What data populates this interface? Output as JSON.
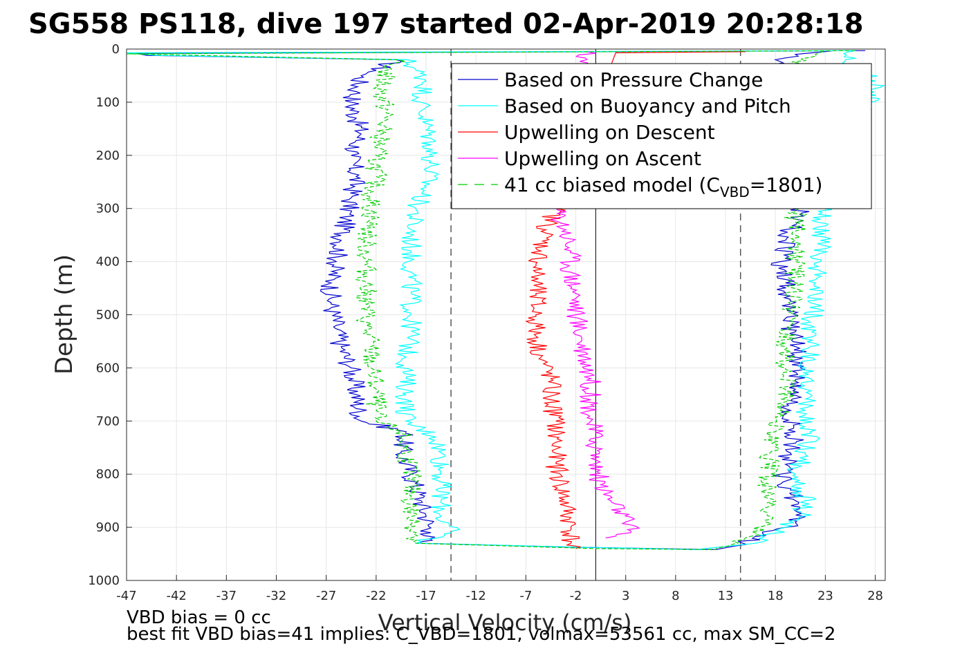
{
  "title": "SG558 PS118, dive 197 started 02-Apr-2019 20:28:18",
  "footer": {
    "line1": "VBD bias = 0 cc",
    "line2": "best fit VBD bias=41 implies: C_VBD=1801, volmax=53561 cc, max SM_CC=2"
  },
  "chart_data": {
    "type": "line",
    "title": "SG558 PS118, dive 197 started 02-Apr-2019 20:28:18",
    "xlabel": "Vertical Velocity (cm/s)",
    "ylabel": "Depth (m)",
    "xlim": [
      -47,
      29
    ],
    "ylim": [
      0,
      1000
    ],
    "y_reversed": true,
    "grid": true,
    "legend_position": "top-right",
    "xticks": [
      -47,
      -42,
      -37,
      -32,
      -27,
      -22,
      -17,
      -12,
      -7,
      -2,
      3,
      8,
      13,
      18,
      23,
      28
    ],
    "yticks": [
      0,
      100,
      200,
      300,
      400,
      500,
      600,
      700,
      800,
      900,
      1000
    ],
    "reference_lines": {
      "solid_x": 0,
      "dashed_x": [
        -14.5,
        14.5
      ]
    },
    "series": [
      {
        "name": "Based on Pressure Change",
        "color": "#0000cc",
        "style": "solid",
        "points": [
          [
            27,
            3
          ],
          [
            -46,
            8
          ],
          [
            -45,
            12
          ],
          [
            -20,
            20
          ],
          [
            -22,
            40
          ],
          [
            -23.5,
            50
          ],
          [
            -24,
            80
          ],
          [
            -24.5,
            100
          ],
          [
            -24,
            130
          ],
          [
            -23.5,
            160
          ],
          [
            -24.5,
            200
          ],
          [
            -24,
            240
          ],
          [
            -24.5,
            280
          ],
          [
            -25,
            320
          ],
          [
            -25.5,
            360
          ],
          [
            -26,
            400
          ],
          [
            -26.5,
            440
          ],
          [
            -26.5,
            480
          ],
          [
            -26,
            520
          ],
          [
            -25.5,
            560
          ],
          [
            -24.5,
            600
          ],
          [
            -24,
            650
          ],
          [
            -23.5,
            700
          ],
          [
            -19,
            720
          ],
          [
            -19.5,
            760
          ],
          [
            -18.5,
            800
          ],
          [
            -17.5,
            850
          ],
          [
            -17,
            880
          ],
          [
            -16.5,
            910
          ],
          [
            -17.5,
            930
          ],
          [
            -3,
            937
          ],
          [
            12,
            942
          ],
          [
            14,
            935
          ],
          [
            17,
            915
          ],
          [
            19,
            900
          ],
          [
            21,
            880
          ],
          [
            20,
            850
          ],
          [
            19.5,
            830
          ],
          [
            18.5,
            800
          ],
          [
            19.5,
            760
          ],
          [
            20,
            720
          ],
          [
            19.5,
            680
          ],
          [
            20,
            640
          ],
          [
            20.5,
            600
          ],
          [
            20,
            560
          ],
          [
            19.5,
            520
          ],
          [
            19.5,
            480
          ],
          [
            19,
            440
          ],
          [
            18.5,
            400
          ],
          [
            19,
            360
          ],
          [
            20,
            320
          ],
          [
            20.5,
            300
          ],
          [
            18,
            20
          ],
          [
            20,
            10
          ],
          [
            24,
            3
          ]
        ]
      },
      {
        "name": "Based on Buoyancy and Pitch",
        "color": "#00ffff",
        "style": "solid",
        "points": [
          [
            26,
            3
          ],
          [
            -47,
            7
          ],
          [
            -44,
            12
          ],
          [
            -19,
            20
          ],
          [
            -18,
            40
          ],
          [
            -17,
            60
          ],
          [
            -17.5,
            100
          ],
          [
            -17,
            140
          ],
          [
            -16.5,
            180
          ],
          [
            -16.5,
            220
          ],
          [
            -17,
            260
          ],
          [
            -18,
            300
          ],
          [
            -18.5,
            340
          ],
          [
            -18.5,
            380
          ],
          [
            -18.5,
            420
          ],
          [
            -18.5,
            460
          ],
          [
            -18.5,
            500
          ],
          [
            -18.5,
            540
          ],
          [
            -19,
            580
          ],
          [
            -19,
            620
          ],
          [
            -19,
            660
          ],
          [
            -19,
            700
          ],
          [
            -16,
            730
          ],
          [
            -15.5,
            760
          ],
          [
            -15.5,
            800
          ],
          [
            -15.5,
            850
          ],
          [
            -15.5,
            880
          ],
          [
            -14.5,
            910
          ],
          [
            -18,
            930
          ],
          [
            0,
            938
          ],
          [
            10,
            942
          ],
          [
            16,
            930
          ],
          [
            19,
            900
          ],
          [
            20.5,
            880
          ],
          [
            21,
            850
          ],
          [
            20,
            800
          ],
          [
            21,
            760
          ],
          [
            21.5,
            720
          ],
          [
            21,
            680
          ],
          [
            21,
            640
          ],
          [
            21,
            600
          ],
          [
            21.5,
            560
          ],
          [
            21.5,
            520
          ],
          [
            22,
            480
          ],
          [
            22,
            440
          ],
          [
            22.5,
            400
          ],
          [
            22.5,
            360
          ],
          [
            22.5,
            320
          ],
          [
            28,
            60
          ],
          [
            25,
            20
          ],
          [
            26,
            3
          ]
        ]
      },
      {
        "name": "Upwelling on Descent",
        "color": "#ff0000",
        "style": "solid",
        "points": [
          [
            15,
            5
          ],
          [
            2,
            7
          ],
          [
            -4,
            300
          ],
          [
            -5,
            340
          ],
          [
            -5.5,
            380
          ],
          [
            -6,
            420
          ],
          [
            -6,
            460
          ],
          [
            -6,
            500
          ],
          [
            -6,
            540
          ],
          [
            -5.5,
            580
          ],
          [
            -4.5,
            620
          ],
          [
            -4.5,
            660
          ],
          [
            -4,
            700
          ],
          [
            -4,
            740
          ],
          [
            -4,
            780
          ],
          [
            -3.5,
            820
          ],
          [
            -3,
            860
          ],
          [
            -2.5,
            900
          ],
          [
            -2.5,
            930
          ],
          [
            -2,
            940
          ]
        ]
      },
      {
        "name": "Upwelling on Ascent",
        "color": "#ff00ff",
        "style": "solid",
        "points": [
          [
            -1,
            5
          ],
          [
            -4,
            300
          ],
          [
            -3,
            340
          ],
          [
            -2.5,
            380
          ],
          [
            -2.5,
            420
          ],
          [
            -2,
            460
          ],
          [
            -2,
            500
          ],
          [
            -1.5,
            540
          ],
          [
            -1,
            580
          ],
          [
            -0.5,
            620
          ],
          [
            -0.5,
            660
          ],
          [
            -0.5,
            700
          ],
          [
            0,
            740
          ],
          [
            0,
            780
          ],
          [
            0.5,
            820
          ],
          [
            1.5,
            850
          ],
          [
            2.5,
            870
          ],
          [
            3,
            890
          ],
          [
            3.5,
            910
          ],
          [
            1,
            920
          ]
        ]
      },
      {
        "name": "41 cc biased model (C_VBD=1801)",
        "color": "#00cc00",
        "style": "dashed",
        "points": [
          [
            26,
            3
          ],
          [
            -47,
            9
          ],
          [
            -20,
            20
          ],
          [
            -21,
            40
          ],
          [
            -21.5,
            80
          ],
          [
            -21,
            120
          ],
          [
            -21.5,
            160
          ],
          [
            -22,
            200
          ],
          [
            -22,
            240
          ],
          [
            -22.5,
            280
          ],
          [
            -22.5,
            320
          ],
          [
            -23,
            360
          ],
          [
            -23,
            400
          ],
          [
            -23,
            440
          ],
          [
            -23,
            480
          ],
          [
            -23,
            520
          ],
          [
            -22.5,
            560
          ],
          [
            -22.5,
            600
          ],
          [
            -22,
            640
          ],
          [
            -22,
            680
          ],
          [
            -22,
            700
          ],
          [
            -19.5,
            720
          ],
          [
            -19,
            760
          ],
          [
            -18.5,
            800
          ],
          [
            -18.5,
            840
          ],
          [
            -18.5,
            880
          ],
          [
            -18,
            910
          ],
          [
            -18,
            930
          ],
          [
            0,
            940
          ],
          [
            12,
            942
          ],
          [
            15,
            920
          ],
          [
            17,
            890
          ],
          [
            17.5,
            860
          ],
          [
            17,
            830
          ],
          [
            17.5,
            800
          ],
          [
            17.5,
            760
          ],
          [
            18,
            720
          ],
          [
            18.5,
            680
          ],
          [
            19,
            640
          ],
          [
            19,
            600
          ],
          [
            19,
            560
          ],
          [
            19.5,
            520
          ],
          [
            19.5,
            480
          ],
          [
            20,
            440
          ],
          [
            20,
            400
          ],
          [
            20,
            360
          ],
          [
            20,
            320
          ],
          [
            20,
            300
          ],
          [
            20,
            30
          ],
          [
            22,
            10
          ],
          [
            23,
            3
          ]
        ]
      }
    ]
  },
  "legend": {
    "items": [
      {
        "label": "Based on Pressure Change",
        "color": "#0000cc",
        "dashed": false
      },
      {
        "label": "Based on Buoyancy and Pitch",
        "color": "#00ffff",
        "dashed": false
      },
      {
        "label": "Upwelling on Descent",
        "color": "#ff0000",
        "dashed": false
      },
      {
        "label": "Upwelling on Ascent",
        "color": "#ff00ff",
        "dashed": false
      },
      {
        "label_main": "41 cc biased model (C",
        "label_sub": "VBD",
        "label_tail": "=1801)",
        "color": "#00cc00",
        "dashed": true
      }
    ]
  }
}
